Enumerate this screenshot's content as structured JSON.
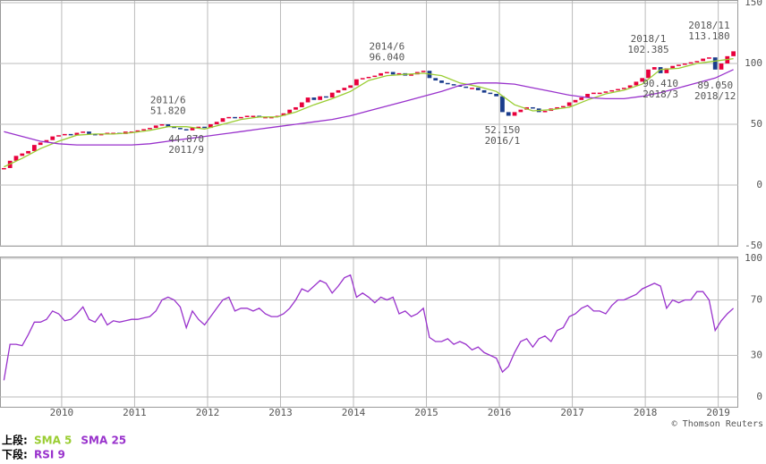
{
  "chart_data": [
    {
      "type": "candlestick",
      "close": [
        14,
        20,
        24,
        26,
        28,
        33,
        35,
        37,
        40,
        41,
        42,
        41,
        43,
        44,
        42,
        41,
        42,
        43,
        43,
        42,
        44,
        44,
        45,
        46,
        47,
        49,
        50,
        48,
        47,
        46,
        45,
        47,
        48,
        47,
        50,
        52,
        55,
        56,
        55,
        56,
        57,
        57,
        56,
        56,
        56,
        57,
        59,
        62,
        64,
        68,
        72,
        70,
        73,
        72,
        76,
        78,
        80,
        82,
        87,
        88,
        89,
        90,
        92,
        93,
        91,
        92,
        90,
        91,
        93,
        94,
        88,
        86,
        84,
        83,
        82,
        81,
        80,
        80,
        78,
        76,
        75,
        73,
        60,
        57,
        60,
        62,
        64,
        63,
        60,
        61,
        63,
        64,
        65,
        68,
        70,
        72,
        75,
        76,
        76,
        77,
        78,
        79,
        80,
        82,
        85,
        88,
        95,
        97,
        92,
        96,
        98,
        99,
        100,
        101,
        102,
        104,
        105,
        95,
        100,
        106,
        110
      ],
      "up_color": "#e8003c",
      "down_color": "#1a3c8c",
      "series": [
        {
          "name": "SMA 5",
          "color": "#9acd32",
          "values": [
            15,
            22,
            30,
            36,
            41,
            42,
            42,
            43,
            45,
            48,
            48,
            46,
            50,
            54,
            56,
            56,
            60,
            66,
            71,
            77,
            86,
            90,
            91,
            92,
            90,
            84,
            81,
            77,
            66,
            61,
            62,
            64,
            70,
            75,
            78,
            83,
            95,
            96,
            100,
            102,
            104
          ]
        },
        {
          "name": "SMA 25",
          "color": "#9932cc",
          "values": [
            44,
            40,
            36,
            34,
            33,
            33,
            33,
            33,
            34,
            36,
            38,
            40,
            42,
            44,
            46,
            48,
            50,
            52,
            54,
            57,
            61,
            65,
            69,
            73,
            77,
            82,
            84,
            84,
            83,
            80,
            77,
            74,
            72,
            71,
            71,
            73,
            76,
            80,
            84,
            88,
            95
          ]
        }
      ],
      "ylim": [
        -50,
        150
      ],
      "yticks": [
        150,
        100,
        50,
        0,
        -50
      ],
      "xlim": [
        2009.167,
        2019.25
      ],
      "grid": true,
      "annotations": [
        {
          "date": "2011/6",
          "value": {
            "value": 51.82,
            "label": "51.820"
          },
          "position": "above"
        },
        {
          "date": "2011/9",
          "value": {
            "value": 44.87,
            "label": "44.870"
          },
          "position": "below"
        },
        {
          "date": "2014/6",
          "value": {
            "value": 96.04,
            "label": "96.040"
          },
          "position": "above"
        },
        {
          "date": "2016/1",
          "value": {
            "value": 52.15,
            "label": "52.150"
          },
          "position": "below"
        },
        {
          "date": "2018/1",
          "value": {
            "value": 102.385,
            "label": "102.385"
          },
          "position": "above"
        },
        {
          "date": "2018/3",
          "value": {
            "value": 90.41,
            "label": "90.410"
          },
          "position": "below"
        },
        {
          "date": "2018/11",
          "value": {
            "value": 113.18,
            "label": "113.180"
          },
          "position": "above"
        },
        {
          "date": "2018/12",
          "value": {
            "value": 89.05,
            "label": "89.050"
          },
          "position": "below"
        }
      ]
    },
    {
      "type": "line",
      "series": [
        {
          "name": "RSI 9",
          "color": "#9932cc",
          "values": [
            12,
            38,
            38,
            37,
            45,
            54,
            54,
            56,
            62,
            60,
            55,
            56,
            60,
            65,
            56,
            54,
            60,
            52,
            55,
            54,
            55,
            56,
            56,
            57,
            58,
            62,
            70,
            72,
            70,
            65,
            50,
            62,
            56,
            52,
            58,
            64,
            70,
            72,
            62,
            64,
            64,
            62,
            64,
            60,
            58,
            58,
            60,
            64,
            70,
            78,
            76,
            80,
            84,
            82,
            75,
            80,
            86,
            88,
            72,
            75,
            72,
            68,
            72,
            70,
            72,
            60,
            62,
            58,
            60,
            64,
            43,
            40,
            40,
            42,
            38,
            40,
            38,
            34,
            36,
            32,
            30,
            28,
            18,
            22,
            32,
            40,
            42,
            36,
            42,
            44,
            40,
            48,
            50,
            58,
            60,
            64,
            66,
            62,
            62,
            60,
            66,
            70,
            70,
            72,
            74,
            78,
            80,
            82,
            80,
            64,
            70,
            68,
            70,
            70,
            76,
            76,
            70,
            48,
            55,
            60,
            64
          ]
        }
      ],
      "ylim": [
        0,
        100
      ],
      "yticks": [
        100,
        70,
        30,
        0
      ],
      "xlim": [
        2009.167,
        2019.25
      ],
      "xticks": [
        2010,
        2011,
        2012,
        2013,
        2014,
        2015,
        2016,
        2017,
        2018,
        2019
      ],
      "grid": true
    }
  ],
  "legend": {
    "upper_label": "上段:",
    "lower_label": "下段:"
  },
  "copyright": "© Thomson Reuters"
}
